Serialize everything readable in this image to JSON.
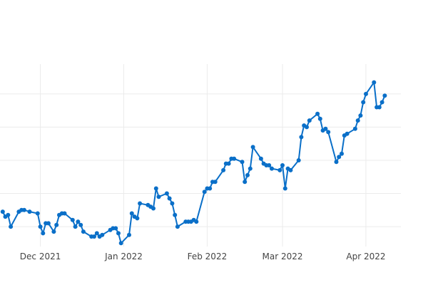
{
  "chart_data": {
    "type": "line",
    "title": "",
    "xlabel": "",
    "ylabel": "",
    "grid": true,
    "legend": "none",
    "x_ticks": [
      {
        "date": "2021-12-01",
        "label": "Dec 2021"
      },
      {
        "date": "2022-01-01",
        "label": "Jan 2022"
      },
      {
        "date": "2022-02-01",
        "label": "Feb 2022"
      },
      {
        "date": "2022-03-01",
        "label": "Mar 2022"
      },
      {
        "date": "2022-04-01",
        "label": "Apr 2022"
      }
    ],
    "y_gridlines": [
      0.6,
      1.6,
      2.6,
      3.6,
      4.6
    ],
    "xlim": [
      "2021-11-16",
      "2022-04-14"
    ],
    "ylim": [
      0,
      5.5
    ],
    "series": [
      {
        "color": "#0a6fc8",
        "x": [
          "2021-11-17",
          "2021-11-18",
          "2021-11-19",
          "2021-11-20",
          "2021-11-23",
          "2021-11-24",
          "2021-11-25",
          "2021-11-27",
          "2021-11-30",
          "2021-12-01",
          "2021-12-02",
          "2021-12-03",
          "2021-12-04",
          "2021-12-06",
          "2021-12-07",
          "2021-12-08",
          "2021-12-09",
          "2021-12-10",
          "2021-12-13",
          "2021-12-14",
          "2021-12-15",
          "2021-12-16",
          "2021-12-17",
          "2021-12-20",
          "2021-12-21",
          "2021-12-22",
          "2021-12-23",
          "2021-12-24",
          "2021-12-27",
          "2021-12-28",
          "2021-12-29",
          "2021-12-30",
          "2021-12-31",
          "2022-01-03",
          "2022-01-04",
          "2022-01-05",
          "2022-01-06",
          "2022-01-07",
          "2022-01-10",
          "2022-01-11",
          "2022-01-12",
          "2022-01-13",
          "2022-01-14",
          "2022-01-17",
          "2022-01-18",
          "2022-01-19",
          "2022-01-20",
          "2022-01-21",
          "2022-01-24",
          "2022-01-25",
          "2022-01-26",
          "2022-01-27",
          "2022-01-28",
          "2022-01-31",
          "2022-02-01",
          "2022-02-02",
          "2022-02-03",
          "2022-02-04",
          "2022-02-07",
          "2022-02-08",
          "2022-02-09",
          "2022-02-10",
          "2022-02-11",
          "2022-02-14",
          "2022-02-15",
          "2022-02-16",
          "2022-02-17",
          "2022-02-18",
          "2022-02-21",
          "2022-02-22",
          "2022-02-23",
          "2022-02-24",
          "2022-02-25",
          "2022-02-28",
          "2022-03-01",
          "2022-03-02",
          "2022-03-03",
          "2022-03-04",
          "2022-03-07",
          "2022-03-08",
          "2022-03-09",
          "2022-03-10",
          "2022-03-11",
          "2022-03-14",
          "2022-03-15",
          "2022-03-16",
          "2022-03-17",
          "2022-03-18",
          "2022-03-21",
          "2022-03-22",
          "2022-03-23",
          "2022-03-24",
          "2022-03-25",
          "2022-03-28",
          "2022-03-29",
          "2022-03-30",
          "2022-03-31",
          "2022-04-01",
          "2022-04-04",
          "2022-04-05",
          "2022-04-06",
          "2022-04-07",
          "2022-04-08"
        ],
        "y": [
          1.05,
          0.9,
          0.95,
          0.6,
          1.05,
          1.1,
          1.1,
          1.05,
          1.0,
          0.6,
          0.4,
          0.7,
          0.7,
          0.45,
          0.65,
          0.95,
          1.0,
          1.0,
          0.8,
          0.6,
          0.75,
          0.65,
          0.45,
          0.3,
          0.3,
          0.4,
          0.3,
          0.35,
          0.5,
          0.55,
          0.55,
          0.4,
          0.1,
          0.35,
          1.0,
          0.9,
          0.85,
          1.3,
          1.25,
          1.2,
          1.15,
          1.75,
          1.5,
          1.6,
          1.45,
          1.3,
          0.95,
          0.6,
          0.75,
          0.75,
          0.75,
          0.8,
          0.75,
          1.65,
          1.75,
          1.75,
          1.95,
          1.95,
          2.3,
          2.5,
          2.5,
          2.65,
          2.65,
          2.55,
          1.95,
          2.15,
          2.35,
          3.0,
          2.65,
          2.5,
          2.45,
          2.45,
          2.35,
          2.3,
          2.45,
          1.75,
          2.35,
          2.3,
          2.6,
          3.3,
          3.65,
          3.6,
          3.8,
          4.0,
          3.85,
          3.5,
          3.55,
          3.45,
          2.55,
          2.7,
          2.8,
          3.35,
          3.4,
          3.55,
          3.8,
          3.95,
          4.35,
          4.6,
          4.95,
          4.2,
          4.2,
          4.35,
          4.55
        ]
      }
    ]
  }
}
